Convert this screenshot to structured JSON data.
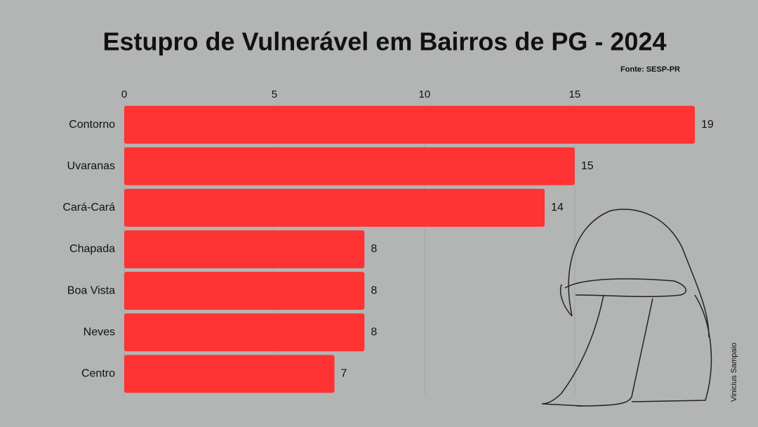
{
  "chart_data": {
    "type": "bar",
    "orientation": "horizontal",
    "title": "Estupro de Vulnerável em Bairros de PG - 2024",
    "source": "Fonte: SESP-PR",
    "credit": "Vinicius Sampaio",
    "categories": [
      "Contorno",
      "Uvaranas",
      "Cará-Cará",
      "Chapada",
      "Boa Vista",
      "Neves",
      "Centro"
    ],
    "values": [
      19,
      15,
      14,
      8,
      8,
      8,
      7
    ],
    "color": "#ff3333",
    "xlim": [
      0,
      19
    ],
    "xticks": [
      0,
      5,
      10,
      15
    ],
    "grid": true
  }
}
